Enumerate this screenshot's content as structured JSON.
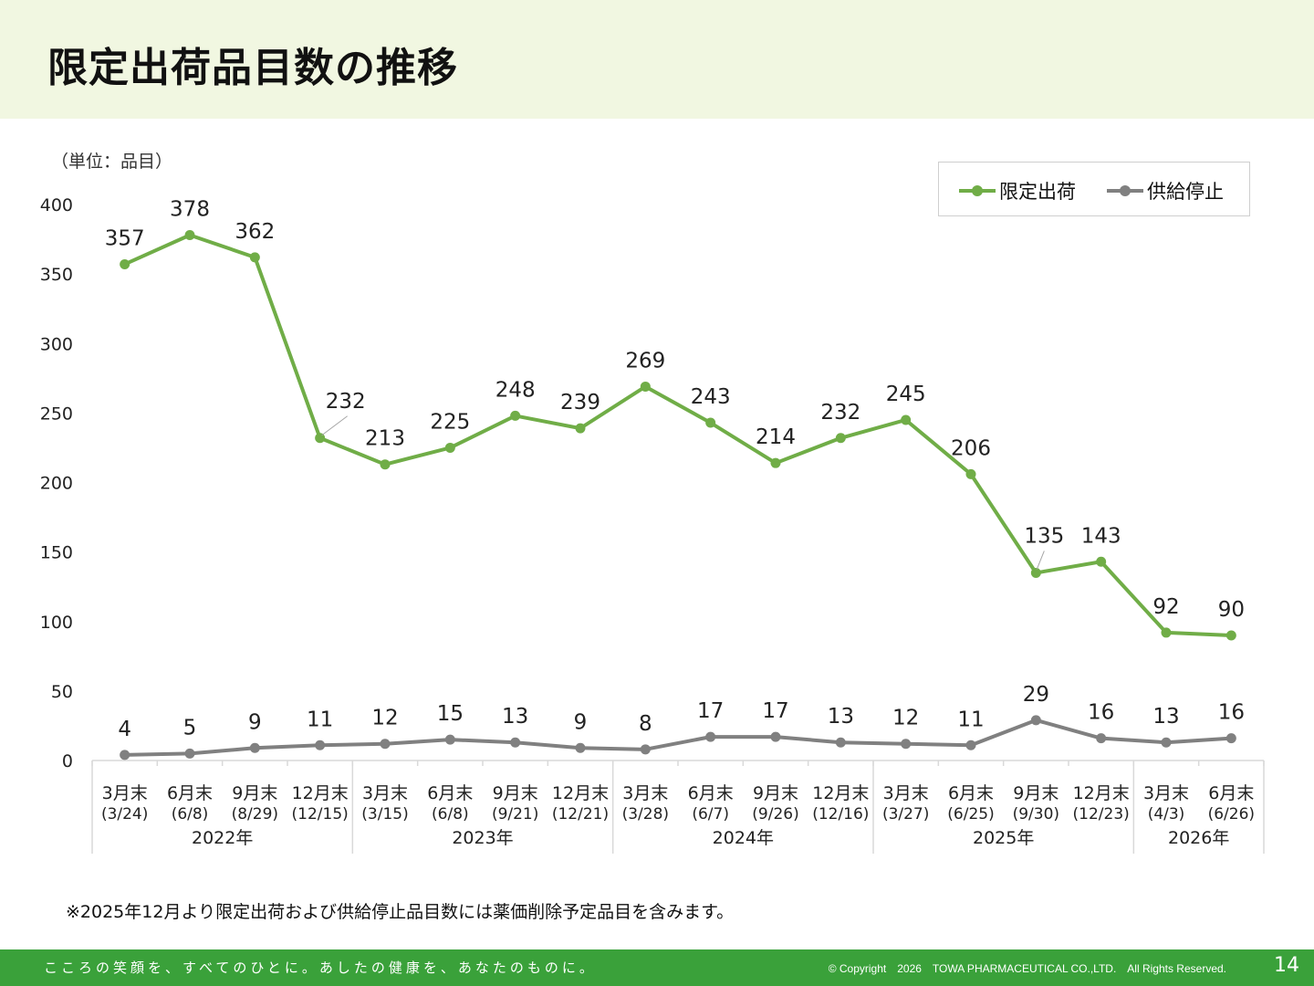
{
  "page": {
    "title": "限定出荷品目数の推移",
    "unit": "（単位：品目）",
    "note": "※2025年12月より限定出荷および供給停止品目数には薬価削除予定品目を含みます。",
    "footer_slogan": "こころの笑顔を、すべてのひとに。あしたの健康を、あなたのものに。",
    "copyright": "© Copyright　2026　TOWA PHARMACEUTICAL CO.,LTD.　All Rights Reserved.",
    "page_number": "14"
  },
  "colors": {
    "header_bg": "#f1f7e1",
    "footer_bg": "#3aa13a",
    "limited": "#70ad47",
    "suspended": "#808080"
  },
  "chart_data": {
    "type": "line",
    "title": "",
    "xlabel": "",
    "ylabel": "（単位：品目）",
    "ylim": [
      0,
      400
    ],
    "yticks": [
      0,
      50,
      100,
      150,
      200,
      250,
      300,
      350,
      400
    ],
    "grid": false,
    "legend_position": "top-right",
    "categories": [
      {
        "label": "3月末",
        "date": "(3/24)"
      },
      {
        "label": "6月末",
        "date": "(6/8)"
      },
      {
        "label": "9月末",
        "date": "(8/29)"
      },
      {
        "label": "12月末",
        "date": "(12/15)"
      },
      {
        "label": "3月末",
        "date": "(3/15)"
      },
      {
        "label": "6月末",
        "date": "(6/8)"
      },
      {
        "label": "9月末",
        "date": "(9/21)"
      },
      {
        "label": "12月末",
        "date": "(12/21)"
      },
      {
        "label": "3月末",
        "date": "(3/28)"
      },
      {
        "label": "6月末",
        "date": "(6/7)"
      },
      {
        "label": "9月末",
        "date": "(9/26)"
      },
      {
        "label": "12月末",
        "date": "(12/16)"
      },
      {
        "label": "3月末",
        "date": "(3/27)"
      },
      {
        "label": "6月末",
        "date": "(6/25)"
      },
      {
        "label": "9月末",
        "date": "(9/30)"
      },
      {
        "label": "12月末",
        "date": "(12/23)"
      },
      {
        "label": "3月末",
        "date": "(4/3)"
      },
      {
        "label": "6月末",
        "date": "(6/26)"
      }
    ],
    "years": [
      {
        "label": "2022年",
        "count": 4
      },
      {
        "label": "2023年",
        "count": 4
      },
      {
        "label": "2024年",
        "count": 4
      },
      {
        "label": "2025年",
        "count": 4
      },
      {
        "label": "2026年",
        "count": 2
      }
    ],
    "series": [
      {
        "name": "限定出荷",
        "color": "#70ad47",
        "values": [
          357,
          378,
          362,
          232,
          213,
          225,
          248,
          239,
          269,
          243,
          214,
          232,
          245,
          206,
          135,
          143,
          92,
          90
        ]
      },
      {
        "name": "供給停止",
        "color": "#808080",
        "values": [
          4,
          5,
          9,
          11,
          12,
          15,
          13,
          9,
          8,
          17,
          17,
          13,
          12,
          11,
          29,
          16,
          13,
          16
        ]
      }
    ]
  }
}
